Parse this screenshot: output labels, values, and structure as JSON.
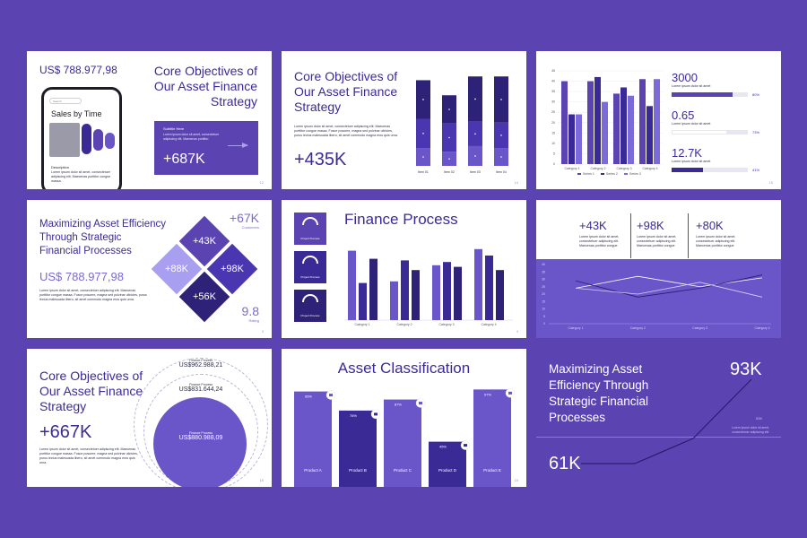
{
  "colors": {
    "background": "#5b44b2",
    "primary": "#5b44b2",
    "dark": "#3a2a96",
    "light": "#7b6ad8",
    "white": "#ffffff"
  },
  "slides": {
    "s1": {
      "price": "US$ 788.977,98",
      "title_l1": "Core Objectives of",
      "title_l2": "Our Asset Finance",
      "title_l3": "Strategy",
      "phone_search": "Search",
      "phone_title": "Sales by Time",
      "phone_desc_title": "Description",
      "phone_desc": "Lorem ipsum dolor sit amet, consectetuer adipiscing elit. Maecenas porttitor congue massa.",
      "card_subtitle": "Subtitle Here",
      "card_text": "Lorem ipsum dolor sit amet, consectetuer adipiscing elit. Maecenas porttitor.",
      "card_value": "+687K",
      "page": "12"
    },
    "s2": {
      "title_l1": "Core Objectives of",
      "title_l2": "Our Asset Finance",
      "title_l3": "Strategy",
      "text": "Lorem ipsum dolor sit amet, consectetuer adipiscing elit. Maecenas porttitor congue massa. Fusce posuere, magna sed pulvinar ultricies, purus lectus malesuada libero, sit amet commodo magna eros quis urna.",
      "value": "+435K",
      "page": "14"
    },
    "s3": {
      "stats": [
        {
          "value": "3000",
          "label": "Lorem ipsum dolor sit amet",
          "percent": "80%",
          "fill": 0.8
        },
        {
          "value": "0.65",
          "label": "Lorem ipsum dolor sit amet",
          "percent": "73%",
          "fill": 0.73
        },
        {
          "value": "12.7K",
          "label": "Lorem ipsum dolor sit amet",
          "percent": "41%",
          "fill": 0.41
        }
      ],
      "page": "15"
    },
    "s4": {
      "title_l1": "Maximizing Asset Efficiency",
      "title_l2": "Through Strategic",
      "title_l3": "Financial Processes",
      "price": "US$ 788.977,98",
      "text": "Lorem ipsum dolor sit amet, consectetuer adipiscing elit. Maecenas porttitor congue massa. Fusce posuere, magna sed pulvinar ultricies, purus lectus malesuada libero, sit amet commodo magna eros quis urna.",
      "d1": "+43K",
      "d2": "+88K",
      "d3": "+98K",
      "d4": "+56K",
      "customers_value": "+67K",
      "customers_label": "Customers",
      "rating_value": "9.8",
      "rating_label": "Rating",
      "page": "3"
    },
    "s5": {
      "title": "Finance Process",
      "gauge_label": "Project Process",
      "page": "4"
    },
    "s6": {
      "stats": [
        {
          "value": "+43K",
          "text": "Lorem ipsum dolor sit amet, consectetuer adipiscing elit. Maecenas porttitor congue"
        },
        {
          "value": "+98K",
          "text": "Lorem ipsum dolor sit amet, consectetuer adipiscing elit. Maecenas porttitor congue"
        },
        {
          "value": "+80K",
          "text": "Lorem ipsum dolor sit amet, consectetuer adipiscing elit. Maecenas porttitor congue"
        }
      ]
    },
    "s7": {
      "title_l1": "Core Objectives of",
      "title_l2": "Our Asset Finance",
      "title_l3": "Strategy",
      "value": "+667K",
      "text": "Lorem ipsum dolor sit amet, consectetuer adipiscing elit. Maecenas porttitor congue massa. Fusce posuere, magna sed pulvinar ultricies, purus lectus malesuada libero, sit amet commodo magna eros quis urna.",
      "c1_label": "Finance Process",
      "c1_value": "US$962.988,21",
      "c2_label": "Finance Process",
      "c2_value": "US$831.644,24",
      "c3_label": "Finance Process",
      "c3_value": "US$880.988,09",
      "page": "16"
    },
    "s8": {
      "title": "Asset Classification",
      "page": "15"
    },
    "s9": {
      "title_l1": "Maximizing Asset",
      "title_l2": "Efficiency Through",
      "title_l3": "Strategic Financial",
      "title_l4": "Processes",
      "start": "61K",
      "end": "93K",
      "small": "53K",
      "text": "Lorem ipsum dolor sit amet, consectetuer adipiscing elit."
    }
  },
  "chart_data": [
    {
      "id": "stacked-bars-s2",
      "type": "bar",
      "categories": [
        "Item 01",
        "Item 02",
        "Item 03",
        "Item 04"
      ],
      "series": [
        {
          "values": [
            19,
            15,
            21,
            19
          ]
        },
        {
          "values": [
            31,
            30,
            26,
            27
          ]
        },
        {
          "values": [
            41,
            30,
            48,
            49
          ]
        }
      ],
      "ylim": [
        0,
        100
      ]
    },
    {
      "id": "clustered-bars-s3",
      "type": "bar",
      "categories": [
        "Category 1",
        "Category 2",
        "Category 3",
        "Category 4"
      ],
      "series": [
        {
          "name": "Series 1",
          "values": [
            40,
            40,
            34,
            41
          ]
        },
        {
          "name": "Series 2",
          "values": [
            24,
            42,
            37,
            28
          ]
        },
        {
          "name": "Series 3",
          "values": [
            24,
            30,
            33,
            41
          ]
        }
      ],
      "yticks": [
        "0",
        "5",
        "10",
        "15",
        "20",
        "25",
        "30",
        "35",
        "40",
        "45"
      ],
      "ylim": [
        0,
        45
      ]
    },
    {
      "id": "bars-s5",
      "type": "bar",
      "categories": [
        "Category 1",
        "Category 2",
        "Category 3",
        "Category 4"
      ],
      "series": [
        {
          "values": [
            43,
            24,
            34,
            44
          ]
        },
        {
          "values": [
            23,
            37,
            36,
            40
          ]
        },
        {
          "values": [
            38,
            31,
            33,
            31
          ]
        }
      ],
      "ylim": [
        0,
        50
      ]
    },
    {
      "id": "lines-s6",
      "type": "line",
      "categories": [
        "Category 1",
        "Category 2",
        "Category 3",
        "Category 4"
      ],
      "series": [
        {
          "values": [
            24,
            32,
            25,
            31
          ]
        },
        {
          "values": [
            29,
            18,
            24,
            33
          ]
        },
        {
          "values": [
            24,
            20,
            28,
            18
          ]
        }
      ],
      "yticks": [
        "0",
        "5",
        "10",
        "15",
        "20",
        "25",
        "30",
        "35",
        "40"
      ],
      "ylim": [
        0,
        40
      ]
    },
    {
      "id": "asset-bars-s8",
      "type": "bar",
      "categories": [
        "Product A",
        "Product B",
        "Product C",
        "Product D",
        "Product E"
      ],
      "values": [
        95,
        76,
        87,
        45,
        97
      ],
      "labels": [
        "95%",
        "76%",
        "87%",
        "45%",
        "97%"
      ],
      "ylim": [
        0,
        100
      ]
    }
  ]
}
